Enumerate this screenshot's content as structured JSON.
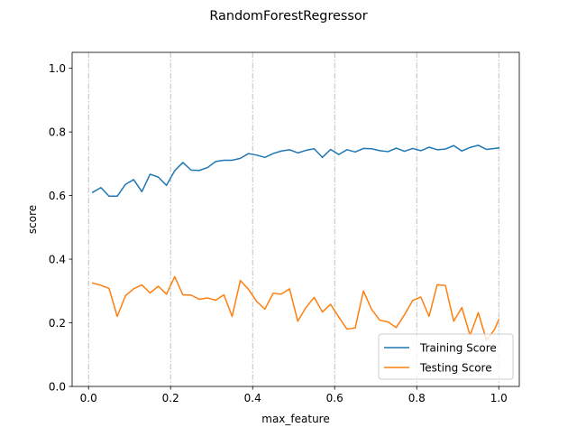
{
  "chart_data": {
    "type": "line",
    "title": "RandomForestRegressor",
    "xlabel": "max_feature",
    "ylabel": "score",
    "xlim": [
      -0.04,
      1.05
    ],
    "ylim": [
      0.0,
      1.05
    ],
    "x_ticks": [
      0.0,
      0.2,
      0.4,
      0.6,
      0.8,
      1.0
    ],
    "x_tick_labels": [
      "0.0",
      "0.2",
      "0.4",
      "0.6",
      "0.8",
      "1.0"
    ],
    "y_ticks": [
      0.0,
      0.2,
      0.4,
      0.6,
      0.8,
      1.0
    ],
    "y_tick_labels": [
      "0.0",
      "0.2",
      "0.4",
      "0.6",
      "0.8",
      "1.0"
    ],
    "grid": "vertical dash-dot lines at x ticks",
    "legend_position": "lower-right",
    "x": [
      0.01,
      0.03,
      0.05,
      0.07,
      0.09,
      0.11,
      0.13,
      0.15,
      0.17,
      0.19,
      0.21,
      0.23,
      0.25,
      0.27,
      0.29,
      0.31,
      0.33,
      0.35,
      0.37,
      0.39,
      0.41,
      0.43,
      0.45,
      0.47,
      0.49,
      0.51,
      0.53,
      0.55,
      0.57,
      0.59,
      0.61,
      0.63,
      0.65,
      0.67,
      0.69,
      0.71,
      0.73,
      0.75,
      0.77,
      0.79,
      0.81,
      0.83,
      0.85,
      0.87,
      0.89,
      0.91,
      0.93,
      0.95,
      0.97,
      0.99,
      1.0
    ],
    "series": [
      {
        "name": "Training Score",
        "color": "#1f77b4",
        "values": [
          0.61,
          0.625,
          0.598,
          0.598,
          0.635,
          0.65,
          0.612,
          0.667,
          0.658,
          0.632,
          0.678,
          0.704,
          0.68,
          0.679,
          0.688,
          0.707,
          0.711,
          0.711,
          0.717,
          0.732,
          0.727,
          0.72,
          0.732,
          0.74,
          0.744,
          0.734,
          0.742,
          0.747,
          0.72,
          0.745,
          0.729,
          0.744,
          0.737,
          0.748,
          0.747,
          0.741,
          0.738,
          0.749,
          0.739,
          0.748,
          0.741,
          0.752,
          0.744,
          0.746,
          0.757,
          0.74,
          0.751,
          0.758,
          0.745,
          0.748,
          0.75
        ]
      },
      {
        "name": "Testing Score",
        "color": "#ff7f0e",
        "values": [
          0.325,
          0.318,
          0.308,
          0.22,
          0.285,
          0.307,
          0.319,
          0.294,
          0.315,
          0.29,
          0.345,
          0.288,
          0.287,
          0.274,
          0.278,
          0.271,
          0.288,
          0.22,
          0.333,
          0.305,
          0.267,
          0.243,
          0.293,
          0.29,
          0.307,
          0.205,
          0.248,
          0.28,
          0.234,
          0.258,
          0.218,
          0.18,
          0.184,
          0.3,
          0.242,
          0.208,
          0.203,
          0.185,
          0.225,
          0.27,
          0.281,
          0.22,
          0.32,
          0.317,
          0.205,
          0.248,
          0.16,
          0.232,
          0.145,
          0.18,
          0.21
        ]
      }
    ]
  }
}
